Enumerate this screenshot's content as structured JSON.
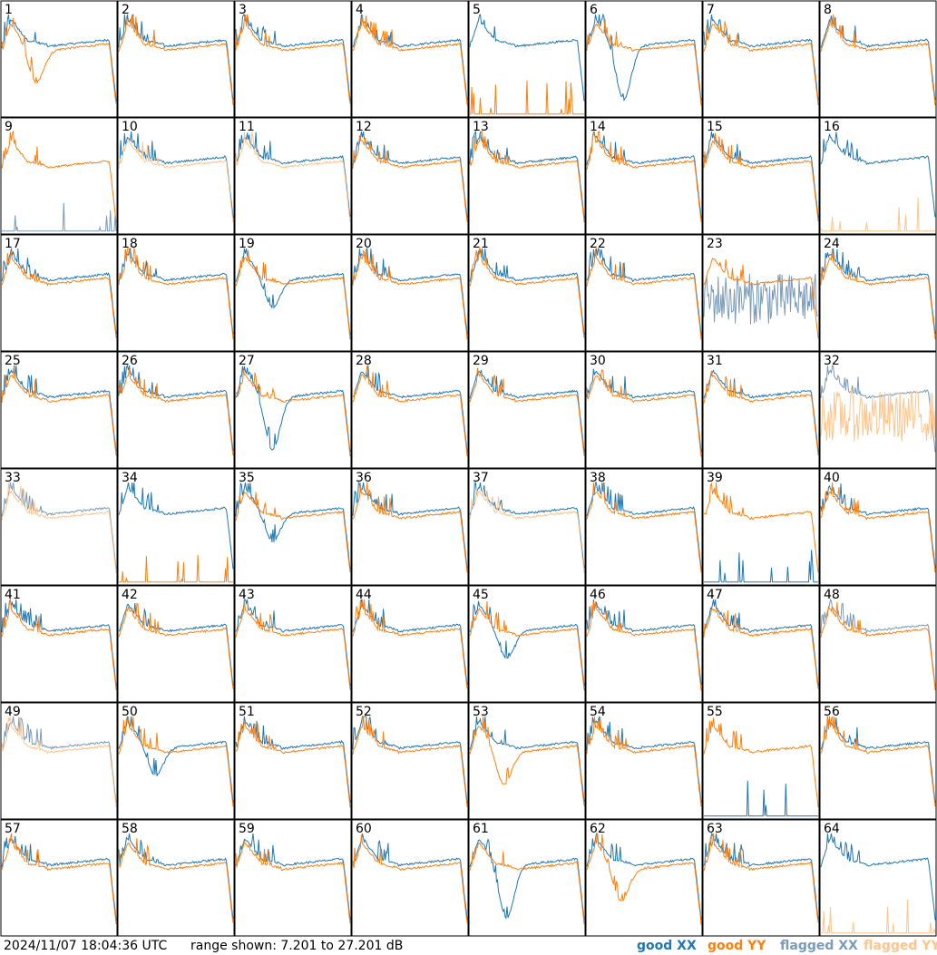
{
  "footer": {
    "timestamp": "2024/11/07 18:04:36 UTC",
    "range_text": "range shown: 7.201 to 27.201 dB"
  },
  "colors": {
    "good_xx": "#1f77b4",
    "good_yy": "#ff7f0e",
    "flagged_xx": "#7b9bb8",
    "flagged_yy": "#ffc48c"
  },
  "chart_data": {
    "type": "line",
    "grid": "8x8 small multiples",
    "ylim": [
      7.201,
      27.201
    ],
    "legend": {
      "placement": "bottom-right",
      "entries": [
        "good XX",
        "good YY",
        "flagged XX",
        "flagged YY"
      ]
    },
    "panels": [
      {
        "id": "1",
        "xx": "good",
        "yy": "good",
        "note": "XX above YY, YY dip mid-band"
      },
      {
        "id": "2",
        "xx": "good",
        "yy": "good"
      },
      {
        "id": "3",
        "xx": "good",
        "yy": "good"
      },
      {
        "id": "4",
        "xx": "good",
        "yy": "good"
      },
      {
        "id": "5",
        "xx": "good",
        "yy": "good",
        "note": "YY near floor, XX bump shape"
      },
      {
        "id": "6",
        "xx": "good",
        "yy": "good",
        "note": "XX deep dip"
      },
      {
        "id": "7",
        "xx": "good",
        "yy": "good"
      },
      {
        "id": "8",
        "xx": "good",
        "yy": "good"
      },
      {
        "id": "9",
        "xx": "flagged",
        "yy": "good",
        "note": "XX near floor"
      },
      {
        "id": "10",
        "xx": "good",
        "yy": "flagged"
      },
      {
        "id": "11",
        "xx": "good",
        "yy": "flagged"
      },
      {
        "id": "12",
        "xx": "good",
        "yy": "good"
      },
      {
        "id": "13",
        "xx": "good",
        "yy": "good"
      },
      {
        "id": "14",
        "xx": "good",
        "yy": "good"
      },
      {
        "id": "15",
        "xx": "good",
        "yy": "good"
      },
      {
        "id": "16",
        "xx": "good",
        "yy": "flagged",
        "note": "YY near floor"
      },
      {
        "id": "17",
        "xx": "good",
        "yy": "good"
      },
      {
        "id": "18",
        "xx": "good",
        "yy": "good"
      },
      {
        "id": "19",
        "xx": "good",
        "yy": "good",
        "note": "XX dip"
      },
      {
        "id": "20",
        "xx": "good",
        "yy": "good"
      },
      {
        "id": "21",
        "xx": "good",
        "yy": "good"
      },
      {
        "id": "22",
        "xx": "good",
        "yy": "good"
      },
      {
        "id": "23",
        "xx": "flagged",
        "yy": "good",
        "note": "XX noisy"
      },
      {
        "id": "24",
        "xx": "good",
        "yy": "good"
      },
      {
        "id": "25",
        "xx": "good",
        "yy": "good"
      },
      {
        "id": "26",
        "xx": "good",
        "yy": "good"
      },
      {
        "id": "27",
        "xx": "good",
        "yy": "good",
        "note": "XX deep dip"
      },
      {
        "id": "28",
        "xx": "good",
        "yy": "good"
      },
      {
        "id": "29",
        "xx": "good",
        "yy": "good"
      },
      {
        "id": "30",
        "xx": "good",
        "yy": "good"
      },
      {
        "id": "31",
        "xx": "good",
        "yy": "good"
      },
      {
        "id": "32",
        "xx": "flagged",
        "yy": "flagged",
        "note": "YY noisy"
      },
      {
        "id": "33",
        "xx": "flagged",
        "yy": "flagged"
      },
      {
        "id": "34",
        "xx": "good",
        "yy": "good",
        "note": "YY near floor"
      },
      {
        "id": "35",
        "xx": "good",
        "yy": "good",
        "note": "XX dip"
      },
      {
        "id": "36",
        "xx": "good",
        "yy": "good"
      },
      {
        "id": "37",
        "xx": "good",
        "yy": "flagged"
      },
      {
        "id": "38",
        "xx": "good",
        "yy": "good"
      },
      {
        "id": "39",
        "xx": "good",
        "yy": "good",
        "note": "XX near floor"
      },
      {
        "id": "40",
        "xx": "good",
        "yy": "good"
      },
      {
        "id": "41",
        "xx": "good",
        "yy": "good"
      },
      {
        "id": "42",
        "xx": "good",
        "yy": "good"
      },
      {
        "id": "43",
        "xx": "good",
        "yy": "good"
      },
      {
        "id": "44",
        "xx": "good",
        "yy": "good"
      },
      {
        "id": "45",
        "xx": "good",
        "yy": "good",
        "note": "XX dip"
      },
      {
        "id": "46",
        "xx": "good",
        "yy": "good"
      },
      {
        "id": "47",
        "xx": "good",
        "yy": "good"
      },
      {
        "id": "48",
        "xx": "flagged",
        "yy": "good"
      },
      {
        "id": "49",
        "xx": "flagged",
        "yy": "flagged"
      },
      {
        "id": "50",
        "xx": "good",
        "yy": "good",
        "note": "XX dip"
      },
      {
        "id": "51",
        "xx": "good",
        "yy": "good"
      },
      {
        "id": "52",
        "xx": "good",
        "yy": "good"
      },
      {
        "id": "53",
        "xx": "good",
        "yy": "good",
        "note": "YY dip"
      },
      {
        "id": "54",
        "xx": "good",
        "yy": "good"
      },
      {
        "id": "55",
        "xx": "good",
        "yy": "good",
        "note": "XX near floor"
      },
      {
        "id": "56",
        "xx": "good",
        "yy": "good"
      },
      {
        "id": "57",
        "xx": "good",
        "yy": "good"
      },
      {
        "id": "58",
        "xx": "good",
        "yy": "good"
      },
      {
        "id": "59",
        "xx": "good",
        "yy": "good"
      },
      {
        "id": "60",
        "xx": "good",
        "yy": "good"
      },
      {
        "id": "61",
        "xx": "good",
        "yy": "good",
        "note": "XX deep dip"
      },
      {
        "id": "62",
        "xx": "good",
        "yy": "good",
        "note": "YY dip"
      },
      {
        "id": "63",
        "xx": "good",
        "yy": "good"
      },
      {
        "id": "64",
        "xx": "good",
        "yy": "flagged",
        "note": "YY near floor"
      }
    ]
  }
}
